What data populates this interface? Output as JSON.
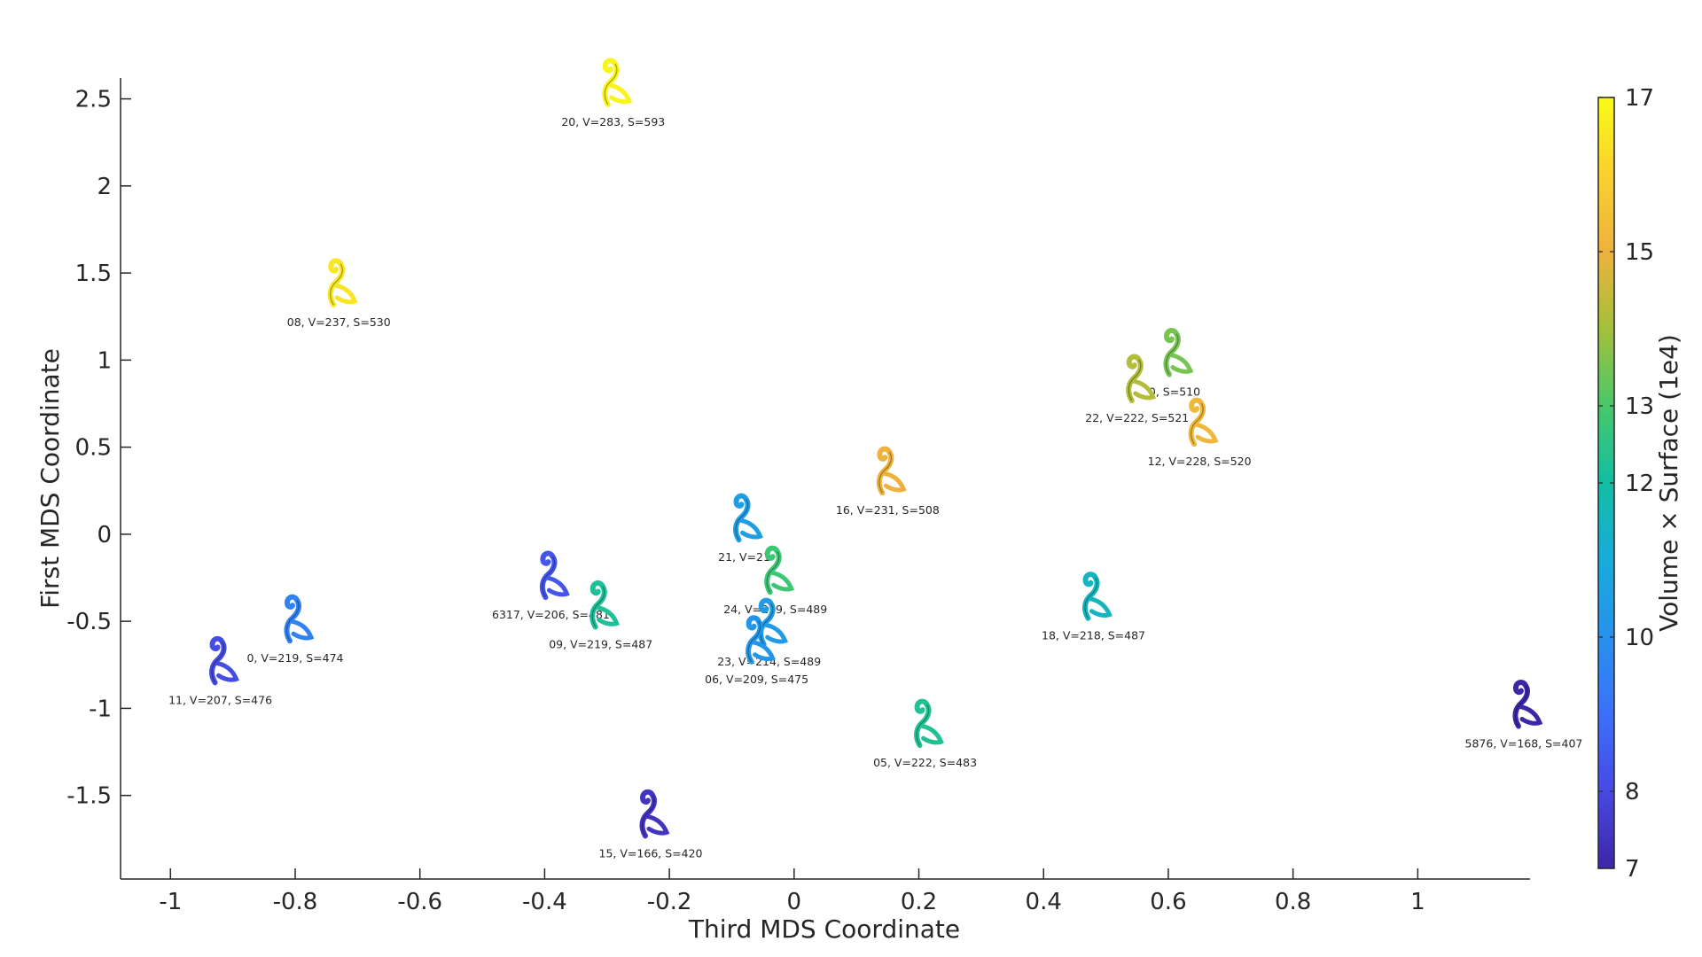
{
  "chart_data": {
    "type": "scatter",
    "xlabel": "Third MDS Coordinate",
    "ylabel": "First MDS Coordinate",
    "xlim": [
      -1.08,
      1.18
    ],
    "ylim": [
      -1.98,
      2.62
    ],
    "xticks": [
      -1,
      -0.8,
      -0.6,
      -0.4,
      -0.2,
      0,
      0.2,
      0.4,
      0.6,
      0.8,
      1
    ],
    "xtick_labels": [
      "-1",
      "-0.8",
      "-0.6",
      "-0.4",
      "-0.2",
      "0",
      "0.2",
      "0.4",
      "0.6",
      "0.8",
      "1"
    ],
    "yticks": [
      -1.5,
      -1,
      -0.5,
      0,
      0.5,
      1,
      1.5,
      2,
      2.5
    ],
    "ytick_labels": [
      "-1.5",
      "-1",
      "-0.5",
      "0",
      "0.5",
      "1",
      "1.5",
      "2",
      "2.5"
    ],
    "colorbar": {
      "label": "Volume × Surface (1e4)",
      "range": [
        7,
        17
      ],
      "ticks": [
        7,
        8,
        10,
        12,
        13,
        15,
        17
      ],
      "tick_labels": [
        "7",
        "8",
        "10",
        "12",
        "13",
        "15",
        "17"
      ]
    },
    "points": [
      {
        "x": -0.29,
        "y": 2.6,
        "value": 16.8,
        "label": "20, V=283, S=593"
      },
      {
        "x": -0.73,
        "y": 1.45,
        "value": 16.5,
        "label": "08, V=237, S=530"
      },
      {
        "x": 0.61,
        "y": 1.05,
        "value": 13.5,
        "label": "0, S=510"
      },
      {
        "x": 0.55,
        "y": 0.9,
        "value": 14.2,
        "label": "22, V=222, S=521"
      },
      {
        "x": 0.65,
        "y": 0.65,
        "value": 15.2,
        "label": "12, V=228, S=520"
      },
      {
        "x": 0.15,
        "y": 0.37,
        "value": 15.0,
        "label": "16, V=231, S=508"
      },
      {
        "x": -0.08,
        "y": 0.1,
        "value": 10.5,
        "label": "21, V=21"
      },
      {
        "x": -0.03,
        "y": -0.2,
        "value": 12.8,
        "label": "24, V=219, S=489"
      },
      {
        "x": -0.39,
        "y": -0.23,
        "value": 8.3,
        "label": "6317, V=206, S=481"
      },
      {
        "x": -0.31,
        "y": -0.4,
        "value": 12.2,
        "label": "09, V=219, S=487"
      },
      {
        "x": -0.04,
        "y": -0.5,
        "value": 10.4,
        "label": "23, V=214, S=489"
      },
      {
        "x": -0.06,
        "y": -0.6,
        "value": 10.2,
        "label": "06, V=209, S=475"
      },
      {
        "x": 0.48,
        "y": -0.35,
        "value": 11.5,
        "label": "18, V=218, S=487"
      },
      {
        "x": -0.8,
        "y": -0.48,
        "value": 9.5,
        "label": "0, V=219, S=474"
      },
      {
        "x": -0.92,
        "y": -0.72,
        "value": 8.1,
        "label": "11, V=207, S=476"
      },
      {
        "x": 0.21,
        "y": -1.08,
        "value": 12.3,
        "label": "05, V=222, S=483"
      },
      {
        "x": 1.17,
        "y": -0.97,
        "value": 7.0,
        "label": "5876, V=168, S=407"
      },
      {
        "x": -0.23,
        "y": -1.6,
        "value": 7.4,
        "label": "15, V=166, S=420"
      }
    ]
  }
}
